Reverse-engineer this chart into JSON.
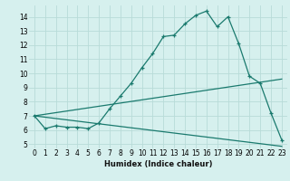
{
  "xlabel": "Humidex (Indice chaleur)",
  "bg_color": "#d6f0ee",
  "grid_color": "#b8dbd8",
  "line_color": "#1a7a6e",
  "xlim": [
    -0.5,
    23.5
  ],
  "ylim": [
    4.7,
    14.8
  ],
  "xticks": [
    0,
    1,
    2,
    3,
    4,
    5,
    6,
    7,
    8,
    9,
    10,
    11,
    12,
    13,
    14,
    15,
    16,
    17,
    18,
    19,
    20,
    21,
    22,
    23
  ],
  "yticks": [
    5,
    6,
    7,
    8,
    9,
    10,
    11,
    12,
    13,
    14
  ],
  "line1_x": [
    0,
    1,
    2,
    3,
    4,
    5,
    6,
    7,
    8,
    9,
    10,
    11,
    12,
    13,
    14,
    15,
    16,
    17,
    18,
    19,
    20,
    21,
    22,
    23
  ],
  "line1_y": [
    7.0,
    6.1,
    6.3,
    6.2,
    6.2,
    6.1,
    6.5,
    7.5,
    8.4,
    9.3,
    10.4,
    11.4,
    12.6,
    12.7,
    13.5,
    14.1,
    14.4,
    13.3,
    14.0,
    12.1,
    9.8,
    9.3,
    7.2,
    5.3
  ],
  "line2_x": [
    0,
    23
  ],
  "line2_y": [
    7.0,
    4.85
  ],
  "line3_x": [
    0,
    23
  ],
  "line3_y": [
    7.0,
    9.6
  ],
  "xlabel_fontsize": 6,
  "tick_fontsize": 5.5
}
